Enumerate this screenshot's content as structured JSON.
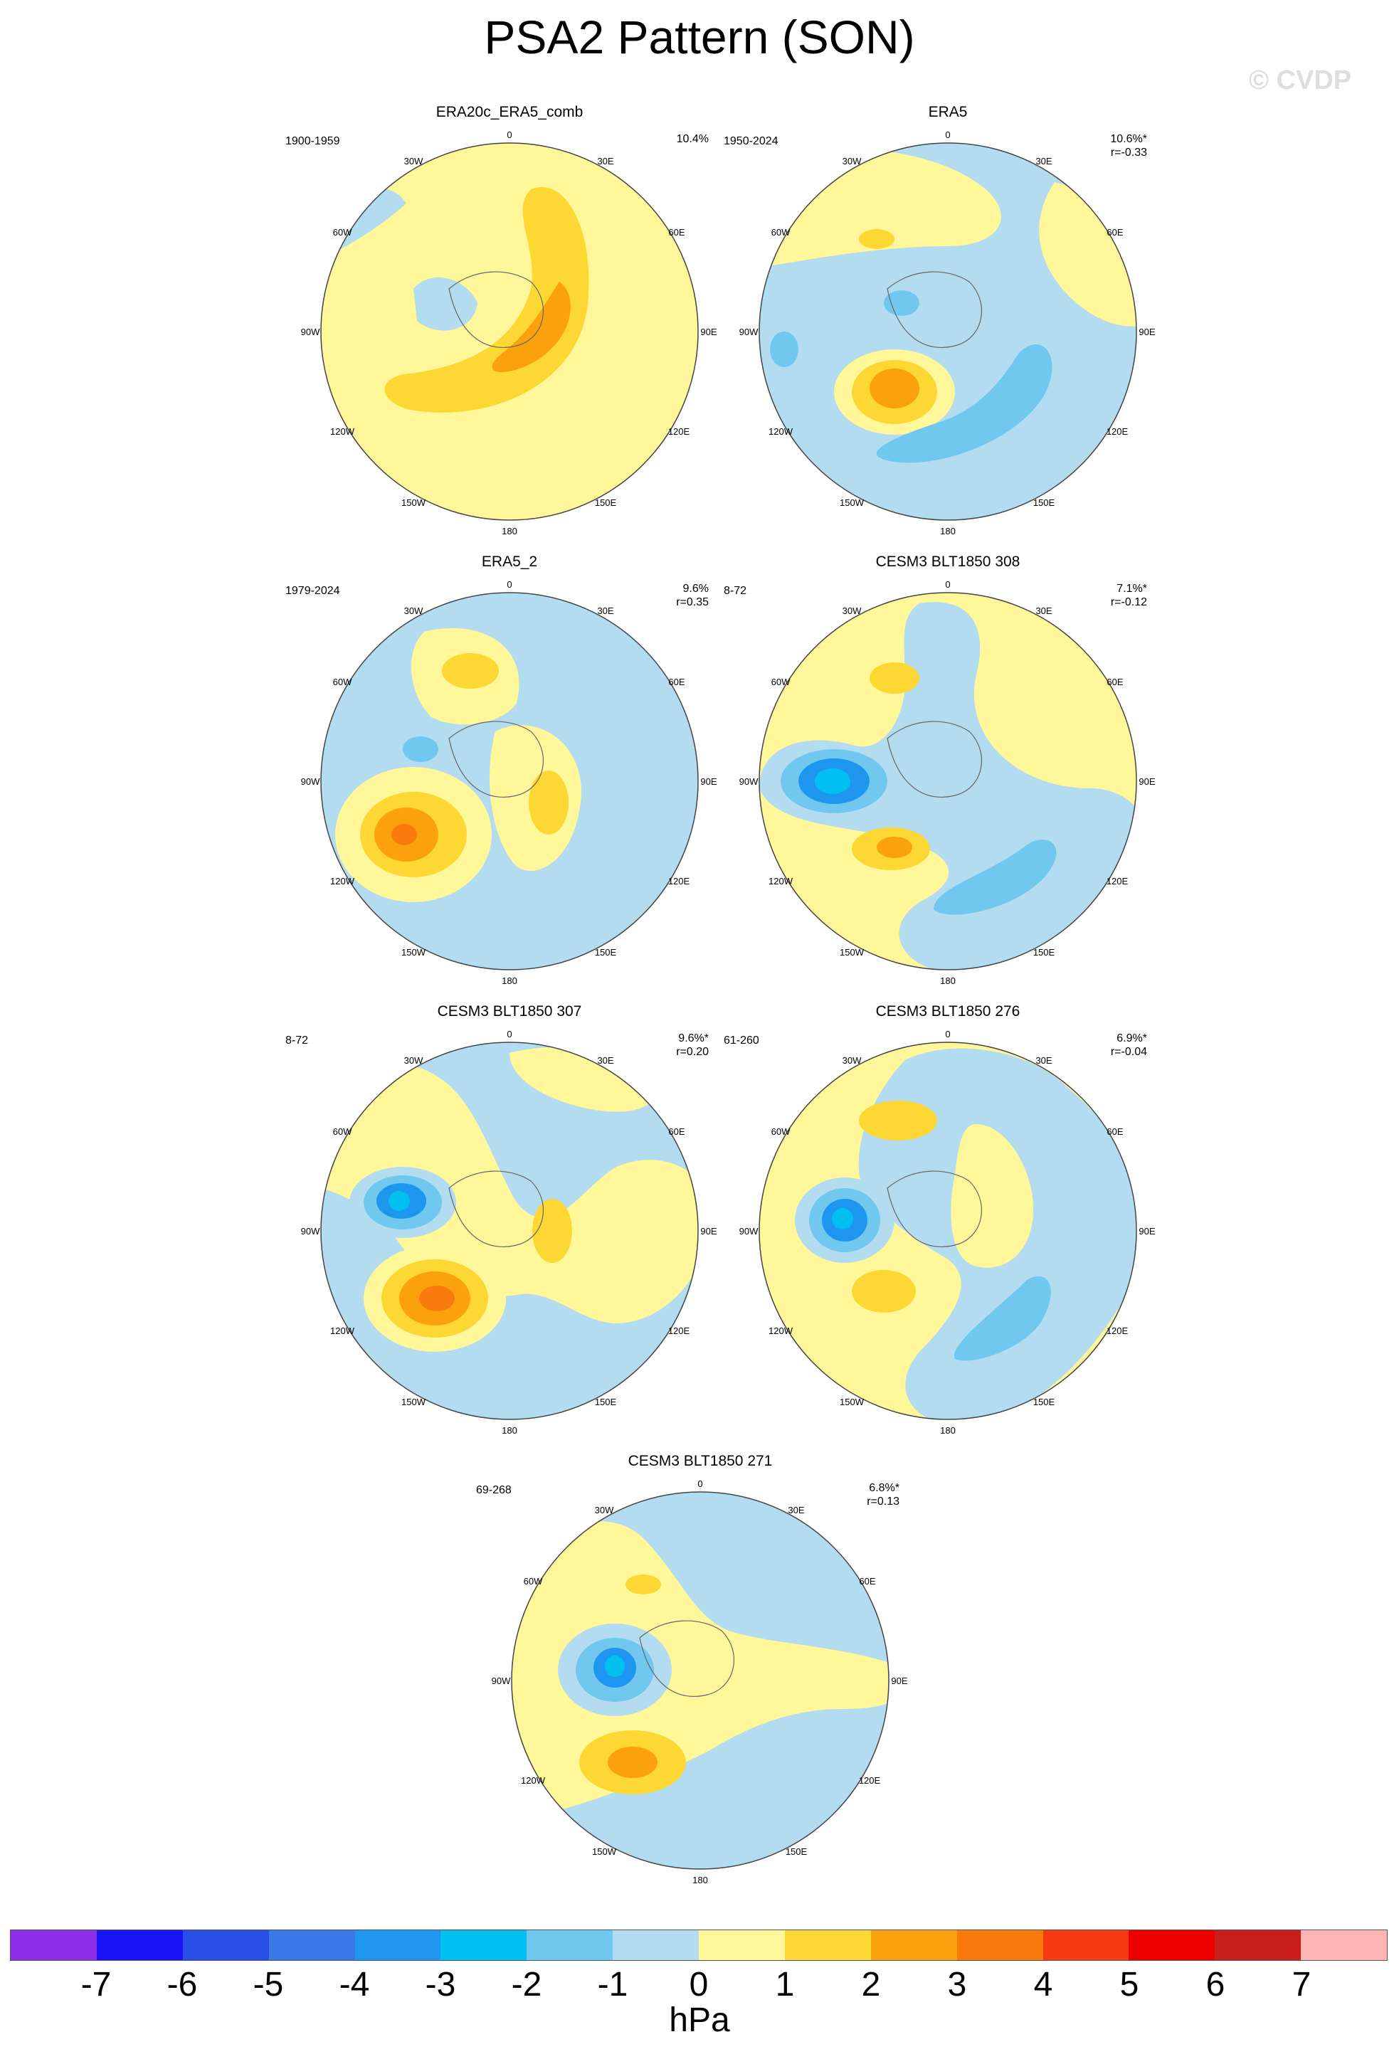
{
  "title": "PSA2 Pattern (SON)",
  "watermark": "© CVDP",
  "lon_labels": [
    "0",
    "30E",
    "60E",
    "90E",
    "120E",
    "150E",
    "180",
    "150W",
    "120W",
    "90W",
    "60W",
    "30W"
  ],
  "colors": {
    "neg7": "#8a2ee8",
    "neg6": "#1a14f5",
    "neg5": "#2a4fe6",
    "neg4": "#3a78e8",
    "neg3": "#1e96f0",
    "neg2": "#00c0f2",
    "neg1": "#70c8ee",
    "neg0": "#b4dcf0",
    "pos0": "#fff79a",
    "pos1": "#fdd835",
    "pos2": "#fca10e",
    "pos3": "#f97b0e",
    "pos4": "#f83a10",
    "pos5": "#ed0000",
    "pos6": "#c81e1e",
    "pos7": "#ffb4b4"
  },
  "panels": [
    {
      "title": "ERA20c_ERA5_comb",
      "years": "1900-1959",
      "pct": "10.4%",
      "r": ""
    },
    {
      "title": "ERA5",
      "years": "1950-2024",
      "pct": "10.6%*",
      "r": "r=-0.33"
    },
    {
      "title": "ERA5_2",
      "years": "1979-2024",
      "pct": "9.6%",
      "r": "r=0.35"
    },
    {
      "title": "CESM3 BLT1850 308",
      "years": "8-72",
      "pct": "7.1%*",
      "r": "r=-0.12"
    },
    {
      "title": "CESM3 BLT1850 307",
      "years": "8-72",
      "pct": "9.6%*",
      "r": "r=0.20"
    },
    {
      "title": "CESM3 BLT1850 276",
      "years": "61-260",
      "pct": "6.9%*",
      "r": "r=-0.04"
    },
    {
      "title": "CESM3 BLT1850 271",
      "years": "69-268",
      "pct": "6.8%*",
      "r": "r=0.13"
    }
  ],
  "colorbar": {
    "ticks": [
      "-7",
      "-6",
      "-5",
      "-4",
      "-3",
      "-2",
      "-1",
      "0",
      "1",
      "2",
      "3",
      "4",
      "5",
      "6",
      "7"
    ],
    "units": "hPa",
    "colors": [
      "#8a2ee8",
      "#1a14f5",
      "#2a4fe6",
      "#3a78e8",
      "#1e96f0",
      "#00c0f2",
      "#70c8ee",
      "#b4dcf0",
      "#fff79a",
      "#fdd835",
      "#fca10e",
      "#f97b0e",
      "#f83a10",
      "#ed0000",
      "#c81e1e",
      "#ffb4b4"
    ]
  }
}
